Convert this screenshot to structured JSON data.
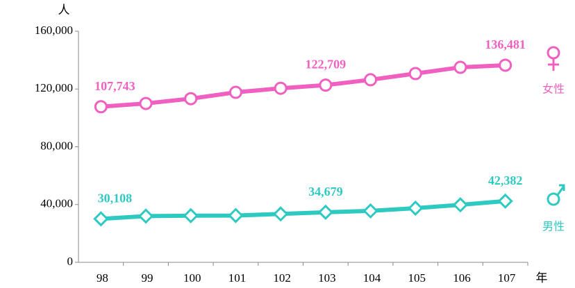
{
  "chart_data": {
    "type": "line",
    "y_label": "人",
    "x_label": "年",
    "categories": [
      "98",
      "99",
      "100",
      "101",
      "102",
      "103",
      "104",
      "105",
      "106",
      "107"
    ],
    "series": [
      {
        "name": "女性",
        "color": "#f060c0",
        "marker": "circle",
        "values": [
          107743,
          110000,
          113300,
          117700,
          120500,
          122709,
          126400,
          130700,
          135000,
          136481
        ],
        "value_labels": [
          "107,743",
          null,
          null,
          null,
          null,
          "122,709",
          null,
          null,
          null,
          "136,481"
        ]
      },
      {
        "name": "男性",
        "color": "#2ecac2",
        "marker": "diamond",
        "values": [
          30108,
          32000,
          32300,
          32400,
          33500,
          34679,
          35600,
          37500,
          39800,
          42382
        ],
        "value_labels": [
          "30,108",
          null,
          null,
          null,
          null,
          "34,679",
          null,
          null,
          null,
          "42,382"
        ]
      }
    ],
    "ylim": [
      0,
      160000
    ],
    "yticks": [
      0,
      {
        "value": 40000,
        "label": "40,000"
      },
      {
        "value": 80000,
        "label": "80,000"
      },
      {
        "value": 120000,
        "label": "120,000"
      },
      {
        "value": 160000,
        "label": "160,000"
      }
    ]
  }
}
